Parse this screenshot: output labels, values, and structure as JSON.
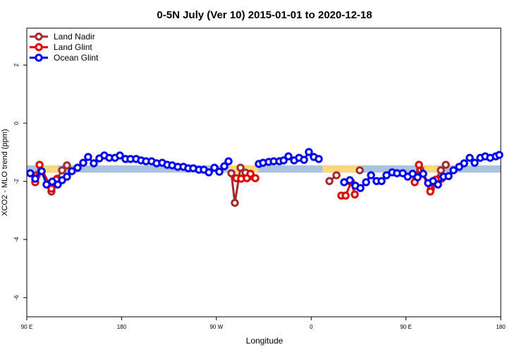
{
  "chart_data": {
    "type": "line",
    "title": "0-5N July (Ver 10)   2015-01-01 to 2020-12-18",
    "x_label": "Longitude",
    "y_label": "XCO2 - MLO trend (ppm)",
    "xlim": [
      90,
      540
    ],
    "ylim": [
      -6.66,
      3.27
    ],
    "xticks": [
      {
        "value": 90,
        "label": "90 E"
      },
      180,
      {
        "value": 270,
        "label": "90 W"
      },
      {
        "value": 360,
        "label": "0"
      },
      {
        "value": 450,
        "label": "90 E"
      },
      {
        "value": 540,
        "label": "180"
      }
    ],
    "yticks": [
      -6,
      -4,
      -2,
      0,
      2
    ],
    "legend": "top-left",
    "bands": {
      "ylim": [
        -1.7,
        -1.45
      ],
      "ocean_color": "#aac4e0",
      "land_color": "#fad77a",
      "land": [
        [
          104.7,
          119.5
        ],
        [
          282,
          310
        ],
        [
          370.6,
          408
        ],
        [
          465,
          480
        ]
      ]
    },
    "series": [
      {
        "name": "Land Nadir",
        "color": "#a52a2a",
        "x": [
          99.4,
          113.4,
          118.8,
          123.5,
          128.1,
          284.2,
          287.5,
          292.9,
          297.6,
          302.3,
          377.3,
          384.0,
          406.1,
          459.6,
          463.6,
          473.7,
          483.1,
          487.8
        ],
        "values": [
          -1.79,
          -2.35,
          -1.91,
          -1.62,
          -1.45,
          -1.72,
          -2.74,
          -1.53,
          -1.7,
          -1.82,
          -1.99,
          -1.79,
          -1.62,
          -1.86,
          -1.6,
          -2.25,
          -1.62,
          -1.43
        ]
      },
      {
        "name": "Land Glint",
        "color": "#e00000",
        "x": [
          98.0,
          102.1,
          113.4,
          118.1,
          288.9,
          293.5,
          298.9,
          302.3,
          307.0,
          388.6,
          392.7,
          398.0,
          401.4,
          458.3,
          462.3,
          473.1,
          478.4,
          483.7
        ],
        "values": [
          -2.03,
          -1.43,
          -2.25,
          -1.94,
          -1.89,
          -1.91,
          -1.89,
          -1.74,
          -1.89,
          -2.49,
          -2.49,
          -2.03,
          -2.45,
          -2.03,
          -1.43,
          -2.35,
          -1.94,
          -1.91
        ]
      },
      {
        "name": "Ocean Glint",
        "color": "#0000ee",
        "x": [
          93.3,
          98.0,
          104.1,
          108.7,
          114.1,
          119.4,
          123.5,
          128.1,
          132.8,
          138.2,
          143.6,
          148.2,
          153.6,
          158.9,
          163.6,
          168.3,
          173.7,
          178.4,
          183.7,
          188.4,
          193.8,
          198.5,
          203.2,
          208.5,
          213.2,
          218.6,
          223.3,
          228.0,
          233.3,
          238.7,
          243.3,
          248.0,
          253.4,
          258.1,
          262.8,
          268.1,
          272.8,
          277.5,
          281.5,
          310.3,
          314.3,
          319.7,
          324.4,
          329.8,
          333.8,
          338.4,
          343.8,
          348.5,
          353.2,
          357.8,
          362.5,
          367.2,
          391.3,
          396.7,
          402.0,
          406.7,
          412.1,
          416.8,
          422.1,
          426.8,
          431.5,
          436.9,
          441.5,
          446.9,
          451.6,
          456.3,
          461.0,
          466.3,
          471.0,
          475.7,
          480.4,
          485.7,
          490.4,
          495.1,
          500.5,
          505.2,
          510.5,
          515.2,
          520.6,
          525.2,
          529.9,
          535.3,
          538.6
        ],
        "values": [
          -1.72,
          -1.91,
          -1.65,
          -2.11,
          -2.01,
          -2.11,
          -1.96,
          -1.84,
          -1.65,
          -1.53,
          -1.36,
          -1.16,
          -1.38,
          -1.21,
          -1.11,
          -1.19,
          -1.19,
          -1.11,
          -1.23,
          -1.23,
          -1.23,
          -1.28,
          -1.31,
          -1.31,
          -1.38,
          -1.36,
          -1.43,
          -1.45,
          -1.5,
          -1.5,
          -1.55,
          -1.55,
          -1.6,
          -1.6,
          -1.69,
          -1.53,
          -1.67,
          -1.48,
          -1.31,
          -1.4,
          -1.36,
          -1.33,
          -1.31,
          -1.31,
          -1.28,
          -1.14,
          -1.28,
          -1.19,
          -1.26,
          -0.99,
          -1.16,
          -1.23,
          -2.03,
          -1.96,
          -2.15,
          -2.23,
          -2.03,
          -1.79,
          -1.99,
          -1.99,
          -1.79,
          -1.69,
          -1.72,
          -1.72,
          -1.84,
          -1.74,
          -1.86,
          -1.74,
          -2.06,
          -1.99,
          -2.11,
          -1.84,
          -1.82,
          -1.62,
          -1.5,
          -1.38,
          -1.19,
          -1.36,
          -1.19,
          -1.14,
          -1.19,
          -1.14,
          -1.09
        ]
      }
    ]
  }
}
